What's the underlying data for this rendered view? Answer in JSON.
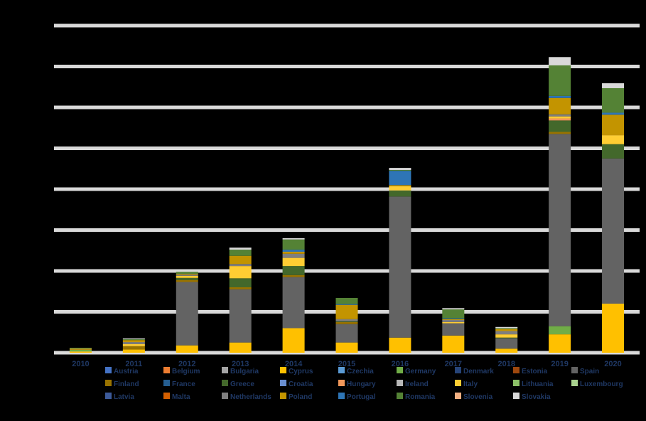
{
  "chart_data": {
    "type": "bar",
    "stacked": true,
    "title": "",
    "xlabel": "",
    "ylabel": "",
    "ylim": [
      0,
      8
    ],
    "grid": true,
    "legend_position": "bottom",
    "categories": [
      "2010",
      "2011",
      "2012",
      "2013",
      "2014",
      "2015",
      "2016",
      "2017",
      "2018",
      "2019",
      "2020"
    ],
    "series": [
      {
        "name": "Austria",
        "color": "#4472c4",
        "values": [
          0,
          0,
          0,
          0,
          0,
          0,
          0,
          0,
          0,
          0,
          0
        ]
      },
      {
        "name": "Belgium",
        "color": "#ed7d31",
        "values": [
          0,
          0,
          0,
          0,
          0,
          0,
          0,
          0,
          0,
          0,
          0
        ]
      },
      {
        "name": "Bulgaria",
        "color": "#a5a5a5",
        "values": [
          0,
          0,
          0,
          0,
          0,
          0,
          0,
          0,
          0,
          0,
          0
        ]
      },
      {
        "name": "Cyprus",
        "color": "#ffc000",
        "values": [
          0.03,
          0.08,
          0.18,
          0.25,
          0.6,
          0.25,
          0.37,
          0.42,
          0.1,
          0.45,
          1.2
        ]
      },
      {
        "name": "Czechia",
        "color": "#5b9bd5",
        "values": [
          0,
          0,
          0,
          0,
          0,
          0,
          0,
          0,
          0,
          0,
          0
        ]
      },
      {
        "name": "Germany",
        "color": "#70ad47",
        "values": [
          0.04,
          0,
          0,
          0,
          0,
          0,
          0,
          0,
          0,
          0.2,
          0
        ]
      },
      {
        "name": "Denmark",
        "color": "#264478",
        "values": [
          0,
          0,
          0,
          0,
          0,
          0,
          0,
          0,
          0,
          0,
          0
        ]
      },
      {
        "name": "Estonia",
        "color": "#9e480e",
        "values": [
          0,
          0,
          0,
          0,
          0,
          0,
          0,
          0,
          0,
          0,
          0
        ]
      },
      {
        "name": "Spain",
        "color": "#636363",
        "values": [
          0,
          0,
          1.55,
          1.3,
          1.25,
          0.45,
          3.45,
          0.3,
          0.25,
          4.7,
          3.55
        ]
      },
      {
        "name": "Finland",
        "color": "#997300",
        "values": [
          0.01,
          0.08,
          0.05,
          0.05,
          0.05,
          0.05,
          0,
          0,
          0,
          0.05,
          0
        ]
      },
      {
        "name": "France",
        "color": "#255e91",
        "values": [
          0,
          0,
          0,
          0,
          0,
          0,
          0,
          0,
          0,
          0,
          0
        ]
      },
      {
        "name": "Greece",
        "color": "#43682b",
        "values": [
          0,
          0,
          0.05,
          0.22,
          0.22,
          0.02,
          0.15,
          0,
          0.02,
          0.28,
          0.35
        ]
      },
      {
        "name": "Croatia",
        "color": "#698ed0",
        "values": [
          0,
          0,
          0,
          0,
          0,
          0,
          0,
          0,
          0,
          0,
          0
        ]
      },
      {
        "name": "Hungary",
        "color": "#f1975a",
        "values": [
          0,
          0,
          0,
          0,
          0,
          0,
          0,
          0,
          0,
          0.05,
          0
        ]
      },
      {
        "name": "Ireland",
        "color": "#b7b7b7",
        "values": [
          0,
          0,
          0,
          0,
          0,
          0,
          0,
          0,
          0,
          0,
          0
        ]
      },
      {
        "name": "Italy",
        "color": "#ffcd33",
        "values": [
          0.02,
          0.05,
          0.05,
          0.3,
          0.2,
          0,
          0.1,
          0.03,
          0.08,
          0.05,
          0.22
        ]
      },
      {
        "name": "Lithuania",
        "color": "#8cc168",
        "values": [
          0,
          0,
          0,
          0,
          0,
          0,
          0,
          0,
          0,
          0,
          0
        ]
      },
      {
        "name": "Luxembourg",
        "color": "#a9d18e",
        "values": [
          0,
          0,
          0,
          0,
          0,
          0,
          0,
          0,
          0,
          0,
          0
        ]
      },
      {
        "name": "Latvia",
        "color": "#3c5a99",
        "values": [
          0,
          0,
          0,
          0,
          0,
          0,
          0,
          0,
          0,
          0,
          0
        ]
      },
      {
        "name": "Malta",
        "color": "#d35f00",
        "values": [
          0,
          0,
          0,
          0,
          0,
          0,
          0,
          0,
          0,
          0,
          0
        ]
      },
      {
        "name": "Netherlands",
        "color": "#7f7f7f",
        "values": [
          0,
          0.05,
          0.03,
          0.05,
          0.1,
          0.05,
          0,
          0.05,
          0.08,
          0.05,
          0
        ]
      },
      {
        "name": "Poland",
        "color": "#c39400",
        "values": [
          0,
          0.05,
          0.02,
          0.2,
          0.05,
          0.35,
          0.03,
          0.02,
          0.05,
          0.4,
          0.5
        ]
      },
      {
        "name": "Portugal",
        "color": "#2e75b6",
        "values": [
          0,
          0,
          0,
          0,
          0.05,
          0.02,
          0.35,
          0.02,
          0,
          0.05,
          0.05
        ]
      },
      {
        "name": "Romania",
        "color": "#548235",
        "values": [
          0.02,
          0.02,
          0.05,
          0.15,
          0.25,
          0.15,
          0.02,
          0.22,
          0.02,
          0.75,
          0.6
        ]
      },
      {
        "name": "Slovenia",
        "color": "#f4b183",
        "values": [
          0,
          0,
          0,
          0,
          0,
          0,
          0,
          0,
          0,
          0,
          0
        ]
      },
      {
        "name": "Slovakia",
        "color": "#d9d9d9",
        "values": [
          0,
          0.02,
          0.05,
          0.05,
          0.03,
          0,
          0.05,
          0.03,
          0.03,
          0.2,
          0.12
        ]
      }
    ]
  }
}
